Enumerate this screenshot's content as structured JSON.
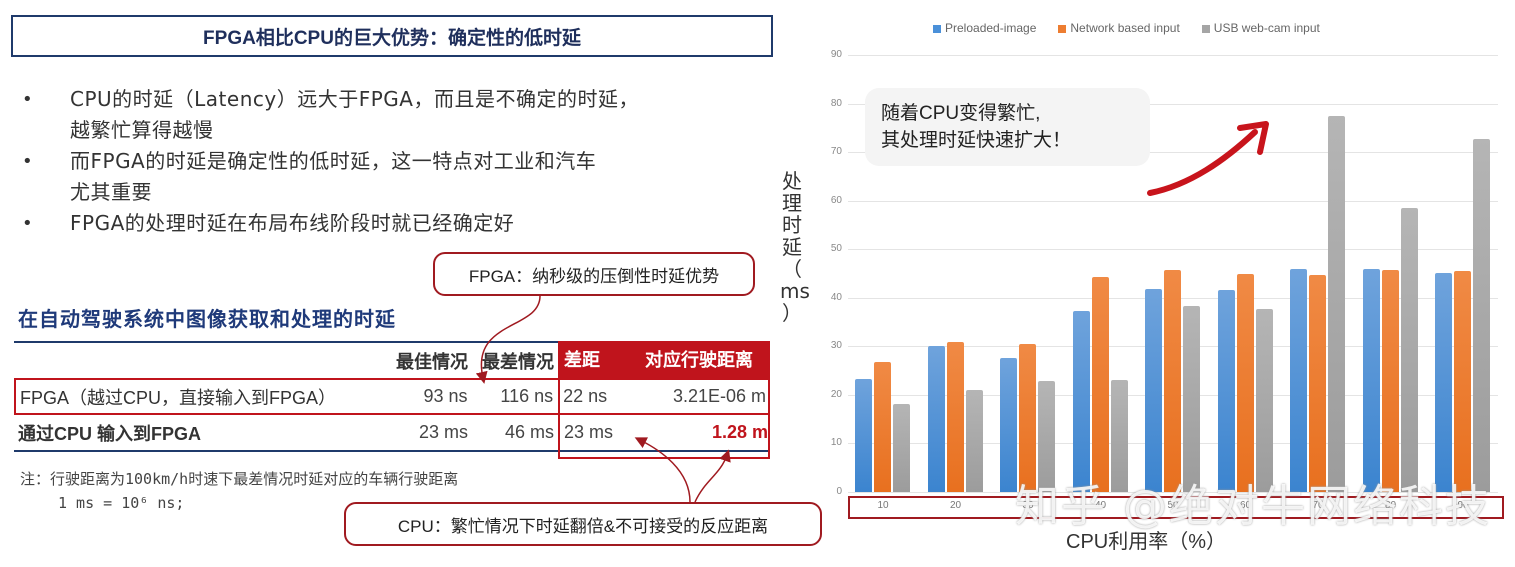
{
  "title": "FPGA相比CPU的巨大优势：确定性的低时延",
  "bullets": [
    {
      "marker": "•",
      "lines": [
        "CPU的时延（Latency）远大于FPGA，而且是不确定的时延，",
        "越繁忙算得越慢"
      ]
    },
    {
      "marker": "•",
      "lines": [
        "而FPGA的时延是确定性的低时延，这一特点对工业和汽车",
        "尤其重要"
      ]
    },
    {
      "marker": "•",
      "lines": [
        "FPGA的处理时延在布局布线阶段时就已经确定好"
      ]
    }
  ],
  "section_title": "在自动驾驶系统中图像获取和处理的时延",
  "table": {
    "headers": [
      "",
      "最佳情况",
      "最差情况",
      "差距",
      "对应行驶距离"
    ],
    "rows": [
      [
        "FPGA（越过CPU，直接输入到FPGA）",
        "93 ns",
        "116 ns",
        "22 ns",
        "3.21E-06 m"
      ],
      [
        "通过CPU 输入到FPGA",
        "23 ms",
        "46 ms",
        "23 ms",
        "1.28 m"
      ]
    ]
  },
  "note": {
    "line1": "注：行驶距离为100km/h时速下最差情况时延对应的车辆行驶距离",
    "line2": "1 ms = 10⁶ ns;"
  },
  "callouts": {
    "fpga": "FPGA：纳秒级的压倒性时延优势",
    "cpu": "CPU：繁忙情况下时延翻倍&不可接受的反应距离",
    "chart": [
      "随着CPU变得繁忙,",
      "其处理时延快速扩大！"
    ]
  },
  "watermark": "知乎 @绝对牛网络科技",
  "colors": {
    "accent_red": "#c0141c",
    "navy": "#1f3a6b",
    "blue": "#3b84cf",
    "orange": "#e8701f",
    "gray": "#a5a5a5"
  },
  "chart_data": {
    "type": "bar",
    "title": "",
    "xlabel": "CPU利用率（%）",
    "ylabel": "处理时延（ms）",
    "ylim": [
      0,
      90
    ],
    "yticks": [
      0,
      10,
      20,
      30,
      40,
      50,
      60,
      70,
      80,
      90
    ],
    "grid": true,
    "legend_position": "top",
    "categories": [
      "10",
      "20",
      "30",
      "40",
      "50",
      "60",
      "70",
      "80",
      "90"
    ],
    "series": [
      {
        "name": "Preloaded-image",
        "color": "#4a90d9",
        "values": [
          23.2,
          30.0,
          27.6,
          37.2,
          41.8,
          41.6,
          45.9,
          45.9,
          45.1
        ]
      },
      {
        "name": "Network based input",
        "color": "#ed7d31",
        "values": [
          26.7,
          30.9,
          30.5,
          44.2,
          45.7,
          45.0,
          44.6,
          45.7,
          45.5
        ]
      },
      {
        "name": "USB web-cam input",
        "color": "#a5a5a5",
        "values": [
          18.1,
          21.0,
          22.8,
          23.0,
          38.3,
          37.7,
          77.4,
          58.4,
          72.8
        ]
      }
    ]
  }
}
